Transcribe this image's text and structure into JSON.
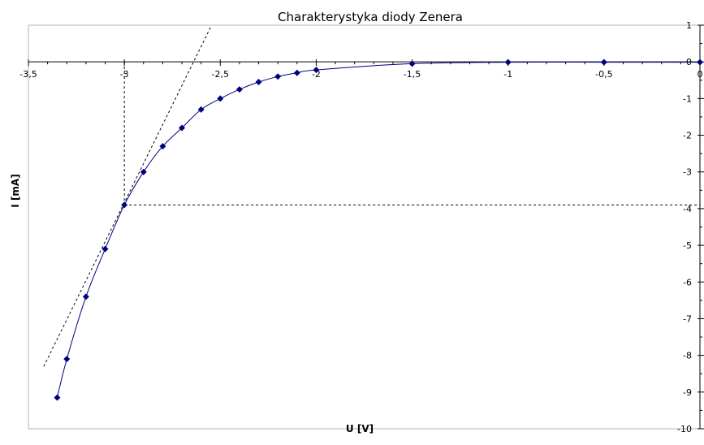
{
  "chart_data": {
    "type": "scatter",
    "title": "Charakterystyka diody Zenera",
    "xlabel": "U [V]",
    "ylabel": "I [mA]",
    "xlim": [
      -3.5,
      0
    ],
    "ylim": [
      -10,
      1
    ],
    "x_ticks": [
      "-3,5",
      "-3",
      "-2,5",
      "-2",
      "-1,5",
      "-1",
      "-0,5",
      "0"
    ],
    "y_ticks": [
      "1",
      "0",
      "-1",
      "-2",
      "-3",
      "-4",
      "-5",
      "-6",
      "-7",
      "-8",
      "-9",
      "-10"
    ],
    "grid": false,
    "series": [
      {
        "color": "#000080",
        "marker": "diamond",
        "smooth_line": true,
        "x": [
          -3.35,
          -3.3,
          -3.2,
          -3.1,
          -3.0,
          -2.9,
          -2.8,
          -2.7,
          -2.6,
          -2.5,
          -2.4,
          -2.3,
          -2.2,
          -2.1,
          -2.0,
          -1.5,
          -1.0,
          -0.5,
          0.0
        ],
        "y": [
          -9.15,
          -8.1,
          -6.4,
          -5.1,
          -3.9,
          -3.0,
          -2.3,
          -1.8,
          -1.3,
          -1.0,
          -0.75,
          -0.55,
          -0.4,
          -0.3,
          -0.22,
          -0.05,
          -0.01,
          -0.01,
          -0.01
        ]
      }
    ],
    "annotations": [
      {
        "kind": "tangent",
        "from": [
          -3.42,
          -8.3
        ],
        "to": [
          -2.55,
          0.95
        ],
        "style": "dashed"
      },
      {
        "kind": "vertical",
        "x": -3.0,
        "y_from": 0,
        "y_to": -3.9,
        "style": "dashed"
      },
      {
        "kind": "horizontal",
        "y": -3.9,
        "x_from": -3.0,
        "x_to": 0,
        "style": "dashed"
      }
    ]
  }
}
